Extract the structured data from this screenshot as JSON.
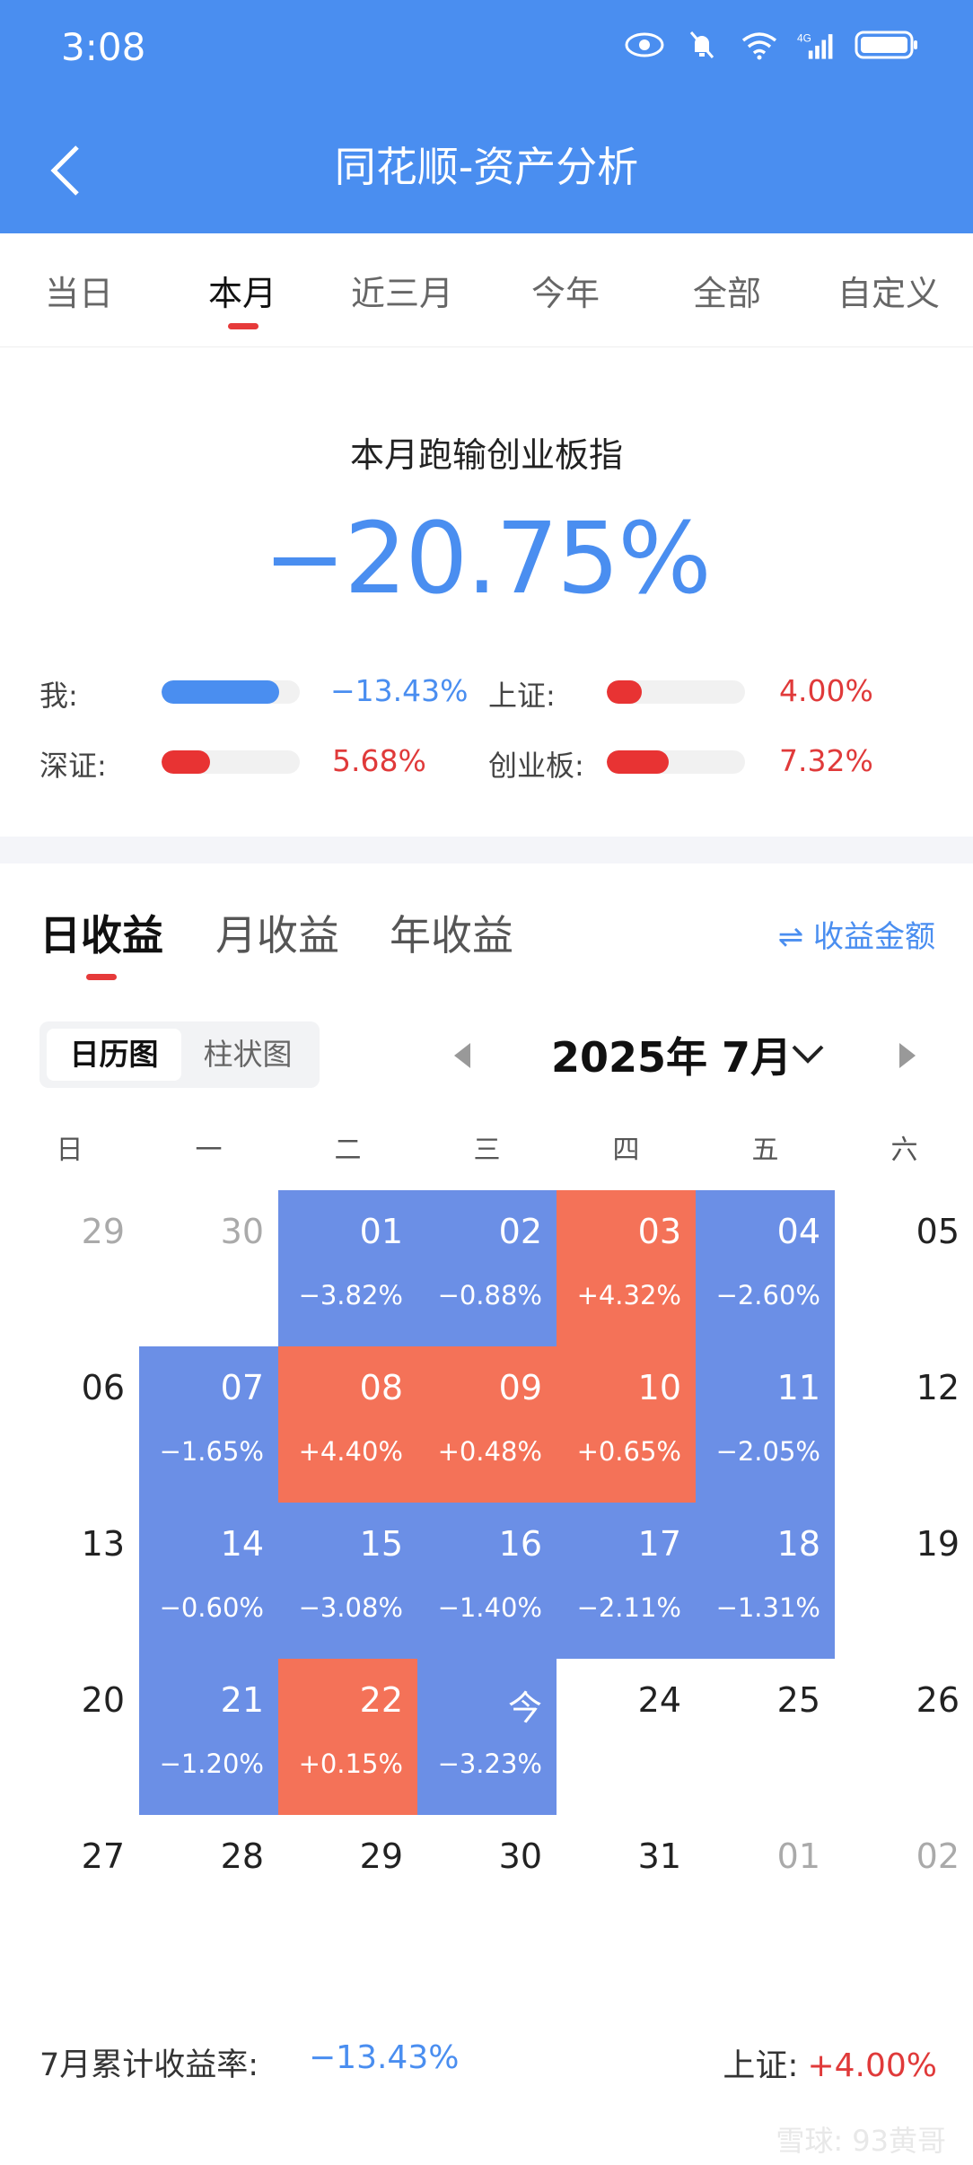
{
  "status_bar": {
    "time": "3:08",
    "network": "4G"
  },
  "header": {
    "title": "同花顺-资产分析"
  },
  "period_tabs": [
    "当日",
    "本月",
    "近三月",
    "今年",
    "全部",
    "自定义"
  ],
  "period_active": "本月",
  "summary": {
    "title": "本月跑输创业板指",
    "value": "−20.75%",
    "comparisons": [
      {
        "label": "我:",
        "value": "−13.43%",
        "color": "#4a8ef0",
        "fill": 0.85
      },
      {
        "label": "上证:",
        "value": "4.00%",
        "color": "#e83333",
        "fill": 0.25
      },
      {
        "label": "深证:",
        "value": "5.68%",
        "color": "#e83333",
        "fill": 0.35
      },
      {
        "label": "创业板:",
        "value": "7.32%",
        "color": "#e83333",
        "fill": 0.45
      }
    ]
  },
  "return_tabs": [
    "日收益",
    "月收益",
    "年收益"
  ],
  "return_tab_active": "日收益",
  "amount_toggle": "⇌ 收益金额",
  "view_toggle": [
    "日历图",
    "柱状图"
  ],
  "month": "2025年 7月",
  "weekdays": [
    "日",
    "一",
    "二",
    "三",
    "四",
    "五",
    "六"
  ],
  "calendar": [
    [
      {
        "d": "29",
        "t": "other"
      },
      {
        "d": "30",
        "t": "other"
      },
      {
        "d": "01",
        "r": "−3.82%",
        "t": "blue"
      },
      {
        "d": "02",
        "r": "−0.88%",
        "t": "blue"
      },
      {
        "d": "03",
        "r": "+4.32%",
        "t": "red"
      },
      {
        "d": "04",
        "r": "−2.60%",
        "t": "blue"
      },
      {
        "d": "05",
        "t": "none"
      }
    ],
    [
      {
        "d": "06",
        "t": "none"
      },
      {
        "d": "07",
        "r": "−1.65%",
        "t": "blue"
      },
      {
        "d": "08",
        "r": "+4.40%",
        "t": "red"
      },
      {
        "d": "09",
        "r": "+0.48%",
        "t": "red"
      },
      {
        "d": "10",
        "r": "+0.65%",
        "t": "red"
      },
      {
        "d": "11",
        "r": "−2.05%",
        "t": "blue"
      },
      {
        "d": "12",
        "t": "none"
      }
    ],
    [
      {
        "d": "13",
        "t": "none"
      },
      {
        "d": "14",
        "r": "−0.60%",
        "t": "blue"
      },
      {
        "d": "15",
        "r": "−3.08%",
        "t": "blue"
      },
      {
        "d": "16",
        "r": "−1.40%",
        "t": "blue"
      },
      {
        "d": "17",
        "r": "−2.11%",
        "t": "blue"
      },
      {
        "d": "18",
        "r": "−1.31%",
        "t": "blue"
      },
      {
        "d": "19",
        "t": "none"
      }
    ],
    [
      {
        "d": "20",
        "t": "none"
      },
      {
        "d": "21",
        "r": "−1.20%",
        "t": "blue"
      },
      {
        "d": "22",
        "r": "+0.15%",
        "t": "red"
      },
      {
        "d": "今",
        "r": "−3.23%",
        "t": "blue"
      },
      {
        "d": "24",
        "t": "none"
      },
      {
        "d": "25",
        "t": "none"
      },
      {
        "d": "26",
        "t": "none"
      }
    ],
    [
      {
        "d": "27",
        "t": "none"
      },
      {
        "d": "28",
        "t": "none"
      },
      {
        "d": "29",
        "t": "none"
      },
      {
        "d": "30",
        "t": "none"
      },
      {
        "d": "31",
        "t": "none"
      },
      {
        "d": "01",
        "t": "other"
      },
      {
        "d": "02",
        "t": "other"
      }
    ]
  ],
  "footer": {
    "label": "7月累计收益率:",
    "value": "−13.43%",
    "index_label": "上证:",
    "index_value": "+4.00%"
  },
  "watermark": "雪球: 93黄哥"
}
